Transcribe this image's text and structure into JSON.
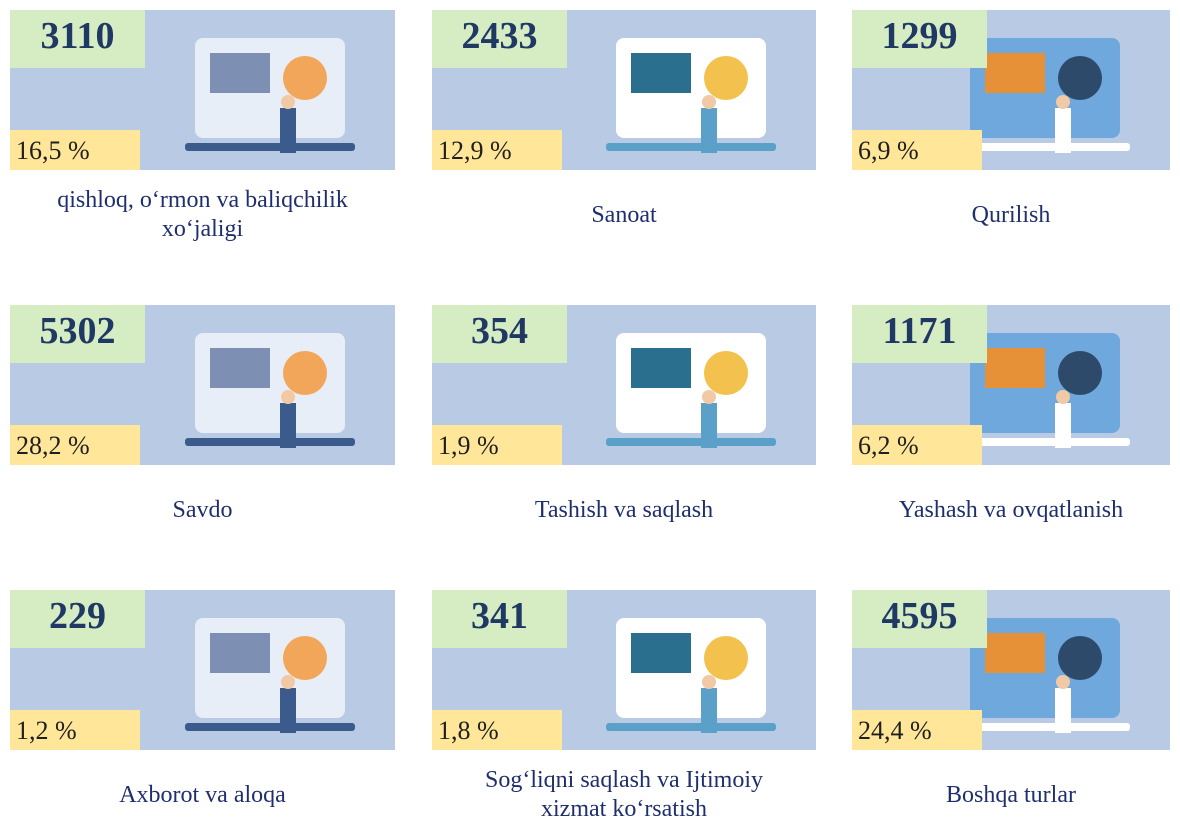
{
  "tiles": [
    {
      "count": "3110",
      "percent": "16,5 %",
      "label": "qishloq, o‘rmon va baliqchilik xo‘jaligi"
    },
    {
      "count": "2433",
      "percent": "12,9 %",
      "label": "Sanoat"
    },
    {
      "count": "1299",
      "percent": "6,9 %",
      "label": "Qurilish"
    },
    {
      "count": "5302",
      "percent": "28,2 %",
      "label": "Savdo"
    },
    {
      "count": "354",
      "percent": "1,9 %",
      "label": "Tashish va saqlash"
    },
    {
      "count": "1171",
      "percent": "6,2 %",
      "label": "Yashash va ovqatlanish"
    },
    {
      "count": "229",
      "percent": "1,2 %",
      "label": "Axborot va aloqa"
    },
    {
      "count": "341",
      "percent": "1,8 %",
      "label": "Sog‘liqni saqlash va Ijtimoiy xizmat ko‘rsatish"
    },
    {
      "count": "4595",
      "percent": "24,4 %",
      "label": "Boshqa turlar"
    }
  ]
}
